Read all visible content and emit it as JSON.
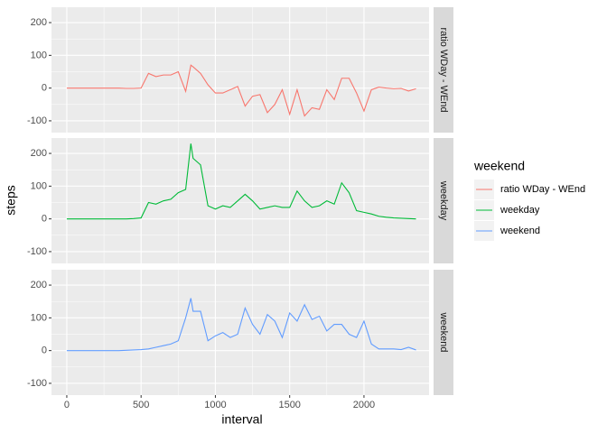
{
  "chart_data": {
    "type": "line",
    "x_label": "interval",
    "y_label": "steps",
    "legend_title": "weekend",
    "xlim": [
      -103,
      2438
    ],
    "xticks": [
      0,
      500,
      1000,
      1500,
      2000
    ],
    "ylim": [
      -136,
      247
    ],
    "yticks": [
      -100,
      0,
      100,
      200
    ],
    "grid": true,
    "facet": true,
    "x": [
      0,
      50,
      100,
      150,
      200,
      250,
      300,
      350,
      400,
      450,
      500,
      550,
      600,
      650,
      700,
      750,
      800,
      835,
      850,
      900,
      950,
      1000,
      1050,
      1100,
      1150,
      1200,
      1250,
      1300,
      1350,
      1400,
      1450,
      1500,
      1550,
      1600,
      1650,
      1700,
      1750,
      1800,
      1850,
      1900,
      1950,
      2000,
      2050,
      2100,
      2150,
      2200,
      2250,
      2300,
      2350
    ],
    "series": [
      {
        "name": "ratio WDay - WEnd",
        "color": "#F8766D",
        "values": [
          0,
          0,
          0,
          0,
          0,
          0,
          0,
          0,
          -1,
          -1,
          0,
          45,
          35,
          40,
          40,
          50,
          -10,
          70,
          65,
          45,
          10,
          -15,
          -15,
          -5,
          5,
          -55,
          -25,
          -20,
          -75,
          -50,
          -5,
          -80,
          -5,
          -85,
          -60,
          -65,
          -5,
          -35,
          30,
          30,
          -15,
          -70,
          -5,
          3,
          0,
          -2,
          -1,
          -9,
          -2
        ]
      },
      {
        "name": "weekday",
        "color": "#00BA38",
        "values": [
          0,
          0,
          0,
          0,
          0,
          0,
          0,
          0,
          0,
          1,
          3,
          50,
          45,
          55,
          60,
          80,
          90,
          230,
          185,
          165,
          40,
          30,
          40,
          35,
          55,
          75,
          55,
          30,
          35,
          40,
          35,
          35,
          85,
          55,
          35,
          40,
          55,
          45,
          110,
          80,
          25,
          20,
          15,
          8,
          5,
          3,
          2,
          1,
          0
        ]
      },
      {
        "name": "weekend",
        "color": "#619CFF",
        "values": [
          0,
          0,
          0,
          0,
          0,
          0,
          0,
          0,
          1,
          2,
          3,
          5,
          10,
          15,
          20,
          30,
          100,
          160,
          120,
          120,
          30,
          45,
          55,
          40,
          50,
          130,
          80,
          50,
          110,
          90,
          40,
          115,
          90,
          140,
          95,
          105,
          60,
          80,
          80,
          50,
          40,
          90,
          20,
          5,
          5,
          5,
          3,
          10,
          2
        ]
      }
    ]
  }
}
